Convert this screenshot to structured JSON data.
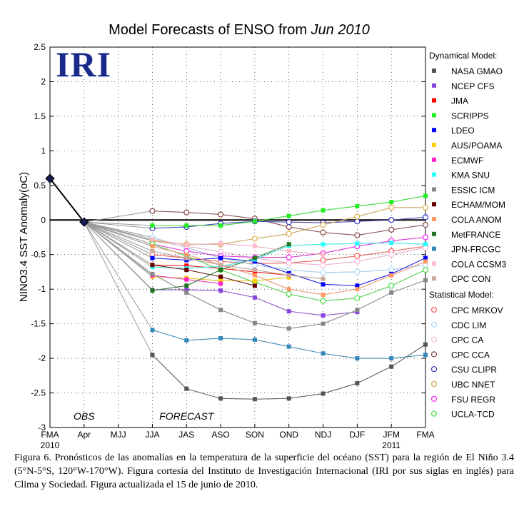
{
  "chart_data": {
    "type": "line",
    "title": "Model Forecasts of ENSO from ",
    "title_italic": "Jun 2010",
    "ylabel": "NINO3.4 SST Anomaly(oC)",
    "ylim": [
      -3,
      2.5
    ],
    "yticks": [
      2.5,
      2,
      1.5,
      1,
      0.5,
      0,
      -0.5,
      -1,
      -1.5,
      -2,
      -2.5,
      -3
    ],
    "categories": [
      "FMA",
      "Apr",
      "MJJ",
      "JJA",
      "JAS",
      "ASO",
      "SON",
      "OND",
      "NDJ",
      "DJF",
      "JFM",
      "FMA"
    ],
    "year_labels": [
      {
        "index": 0,
        "label": "2010"
      },
      {
        "index": 10,
        "label": "2011"
      }
    ],
    "annotations": [
      {
        "text": "OBS",
        "index": 1
      },
      {
        "text": "FORECAST",
        "index": 4
      }
    ],
    "logo_text": "IRI",
    "observed": {
      "x": [
        0,
        1
      ],
      "values": [
        0.6,
        -0.03
      ]
    },
    "legend_dynamical_title": "Dynamical Model:",
    "legend_statistical_title": "Statistical Model:",
    "dynamical": [
      {
        "name": "NASA GMAO",
        "color": "#555555",
        "values": [
          -1.95,
          -2.44,
          -2.58,
          -2.59,
          -2.58,
          -2.51,
          -2.36,
          -2.12,
          -1.8
        ]
      },
      {
        "name": "NCEP CFS",
        "color": "#8844dd",
        "values": [
          -1.01,
          -1.01,
          -1.02,
          -1.12,
          -1.32,
          -1.38,
          -1.33
        ]
      },
      {
        "name": "JMA",
        "color": "#ff0000",
        "values": [
          -0.65,
          -0.66,
          -0.7,
          -0.75,
          -0.8
        ]
      },
      {
        "name": "SCRIPPS",
        "color": "#22ee22",
        "values": [
          -0.08,
          -0.08,
          -0.08,
          -0.02,
          0.06,
          0.14,
          0.2,
          0.26,
          0.35
        ]
      },
      {
        "name": "LDEO",
        "color": "#0000ff",
        "values": [
          -0.55,
          -0.58,
          -0.55,
          -0.6,
          -0.77,
          -0.93,
          -0.95,
          -0.78,
          -0.55
        ]
      },
      {
        "name": "AUS/POAMA",
        "color": "#ffcc00",
        "values": [
          -0.82,
          -0.84,
          -0.88,
          -0.88,
          -0.83
        ]
      },
      {
        "name": "ECMWF",
        "color": "#ff22cc",
        "values": [
          -0.8,
          -0.86,
          -0.92
        ]
      },
      {
        "name": "KMA SNU",
        "color": "#22ffff",
        "values": [
          -0.68,
          -0.7,
          -0.67,
          -0.57,
          -0.37,
          -0.35,
          -0.34,
          -0.33,
          -0.35
        ]
      },
      {
        "name": "ESSIC ICM",
        "color": "#888888",
        "values": [
          -0.78,
          -1.05,
          -1.3,
          -1.49,
          -1.57,
          -1.5,
          -1.3,
          -1.05,
          -0.87
        ]
      },
      {
        "name": "ECHAM/MOM",
        "color": "#660000",
        "values": [
          -0.65,
          -0.72,
          -0.82,
          -0.95
        ]
      },
      {
        "name": "COLA ANOM",
        "color": "#ff9966",
        "values": [
          -0.38,
          -0.5,
          -0.65,
          -0.8,
          -1.0,
          -1.08,
          -1.0,
          -0.8,
          -0.6
        ]
      },
      {
        "name": "MetFRANCE",
        "color": "#227722",
        "values": [
          -1.02,
          -0.95,
          -0.72,
          -0.55,
          -0.35
        ]
      },
      {
        "name": "JPN-FRCGC",
        "color": "#3388bb",
        "values": [
          -1.59,
          -1.74,
          -1.71,
          -1.73,
          -1.83,
          -1.93,
          -2.0,
          -2.0,
          -1.95
        ]
      },
      {
        "name": "COLA CCSM3",
        "color": "#ffbbcc",
        "values": [
          -0.28,
          -0.36,
          -0.34,
          -0.38,
          -0.45,
          -0.5
        ]
      },
      {
        "name": "CPC CON",
        "color": "#ccaa99",
        "values": [
          -0.45,
          -0.55,
          -0.65,
          -0.72,
          -0.8,
          -0.85
        ]
      }
    ],
    "statistical": [
      {
        "name": "CPC MRKOV",
        "color": "#ff5555",
        "values": [
          -0.5,
          -0.55,
          -0.6,
          -0.63,
          -0.62,
          -0.58,
          -0.52,
          -0.45,
          -0.38
        ]
      },
      {
        "name": "CDC LIM",
        "color": "#aaddff",
        "values": [
          -0.25,
          -0.4,
          -0.55,
          -0.65,
          -0.72,
          -0.76,
          -0.75,
          -0.72,
          -0.65
        ]
      },
      {
        "name": "CPC CA",
        "color": "#ffbbdd",
        "values": [
          -0.3,
          -0.38,
          -0.46,
          -0.55,
          -0.62,
          -0.65,
          -0.6,
          -0.5,
          -0.4
        ]
      },
      {
        "name": "CPC CCA",
        "color": "#884444",
        "values": [
          0.13,
          0.11,
          0.08,
          0.02,
          -0.1,
          -0.18,
          -0.22,
          -0.14,
          -0.07
        ]
      },
      {
        "name": "CSU CLIPR",
        "color": "#3333bb",
        "values": [
          -0.12,
          -0.1,
          -0.05,
          -0.02,
          -0.03,
          -0.04,
          -0.02,
          0.0,
          0.04
        ]
      },
      {
        "name": "UBC NNET",
        "color": "#ddaa44",
        "values": [
          -0.3,
          -0.35,
          -0.35,
          -0.27,
          -0.2,
          -0.07,
          0.05,
          0.18,
          0.18
        ]
      },
      {
        "name": "FSU REGR",
        "color": "#ee22ee",
        "values": [
          -0.35,
          -0.45,
          -0.52,
          -0.54,
          -0.54,
          -0.48,
          -0.38,
          -0.3,
          -0.25
        ]
      },
      {
        "name": "UCLA-TCD",
        "color": "#44dd44",
        "values": [
          -0.35,
          -0.52,
          -0.72,
          -0.9,
          -1.07,
          -1.17,
          -1.13,
          -0.95,
          -0.72
        ]
      }
    ]
  },
  "caption": "Figura 6. Pronósticos de las anomalías en la temperatura de la superficie del océano (SST) para la región de El Niño 3.4 (5°N-5°S, 120°W-170°W). Figura cortesía del Instituto de Investigación Internacional (IRI por sus siglas en inglés) para Clima y Sociedad. Figura actualizada el 15 de junio de 2010."
}
